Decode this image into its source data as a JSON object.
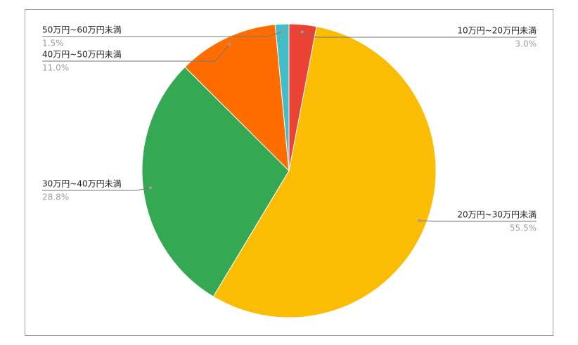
{
  "chart_data": {
    "type": "pie",
    "categories": [
      "10万円~20万円未満",
      "20万円~30万円未満",
      "30万円~40万円未満",
      "40万円~50万円未満",
      "50万円~60万円未満"
    ],
    "values": [
      3.0,
      55.5,
      28.8,
      11.0,
      1.5
    ],
    "value_labels": [
      "3.0%",
      "55.5%",
      "28.8%",
      "11.0%",
      "1.5%"
    ],
    "colors": [
      "#ea4335",
      "#fbbc04",
      "#34a853",
      "#ff6d01",
      "#46bdc6"
    ]
  }
}
